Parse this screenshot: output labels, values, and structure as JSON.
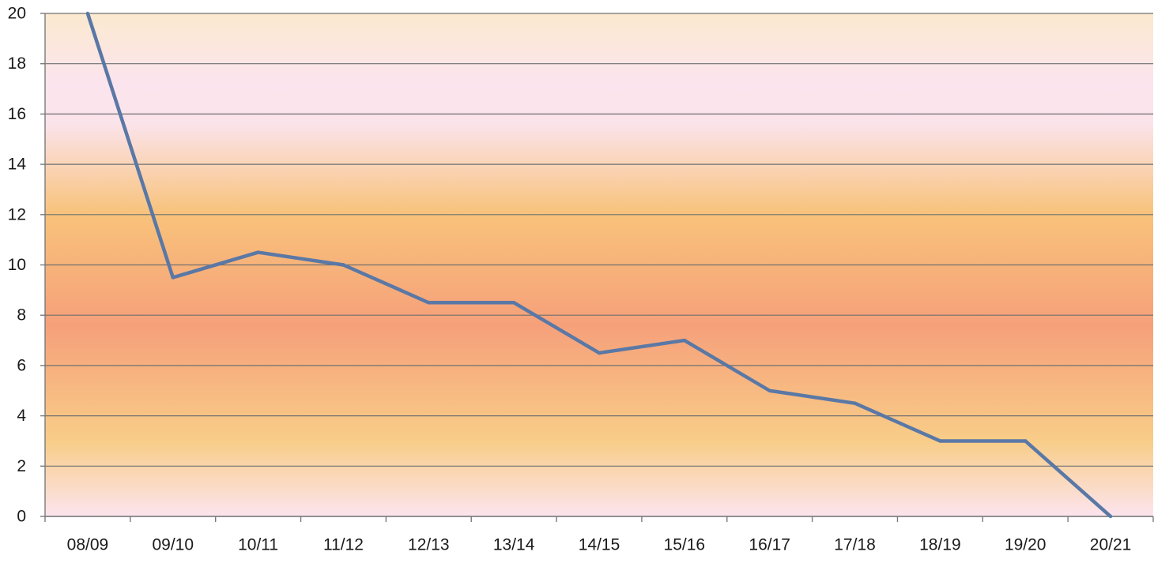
{
  "chart_data": {
    "type": "line",
    "title": "",
    "xlabel": "",
    "ylabel": "",
    "categories": [
      "08/09",
      "09/10",
      "10/11",
      "11/12",
      "12/13",
      "13/14",
      "14/15",
      "15/16",
      "16/17",
      "17/18",
      "18/19",
      "19/20",
      "20/21"
    ],
    "series": [
      {
        "values": [
          20,
          9.5,
          10.5,
          10,
          8.5,
          8.5,
          6.5,
          7,
          5,
          4.5,
          3,
          3,
          0
        ],
        "color": "#5a78a6"
      }
    ],
    "ylim": [
      0,
      20
    ],
    "yticks": [
      0,
      2,
      4,
      6,
      8,
      10,
      12,
      14,
      16,
      18,
      20
    ],
    "ytick_labels": [
      "0",
      "2",
      "4",
      "6",
      "8",
      "10",
      "12",
      "14",
      "16",
      "18",
      "20"
    ],
    "grid": true,
    "legend": "none",
    "background_gradient": [
      "#fbe9cf",
      "#fce4ee",
      "#f8c27a",
      "#f6a07a",
      "#f8c27a",
      "#fce4ee"
    ]
  }
}
